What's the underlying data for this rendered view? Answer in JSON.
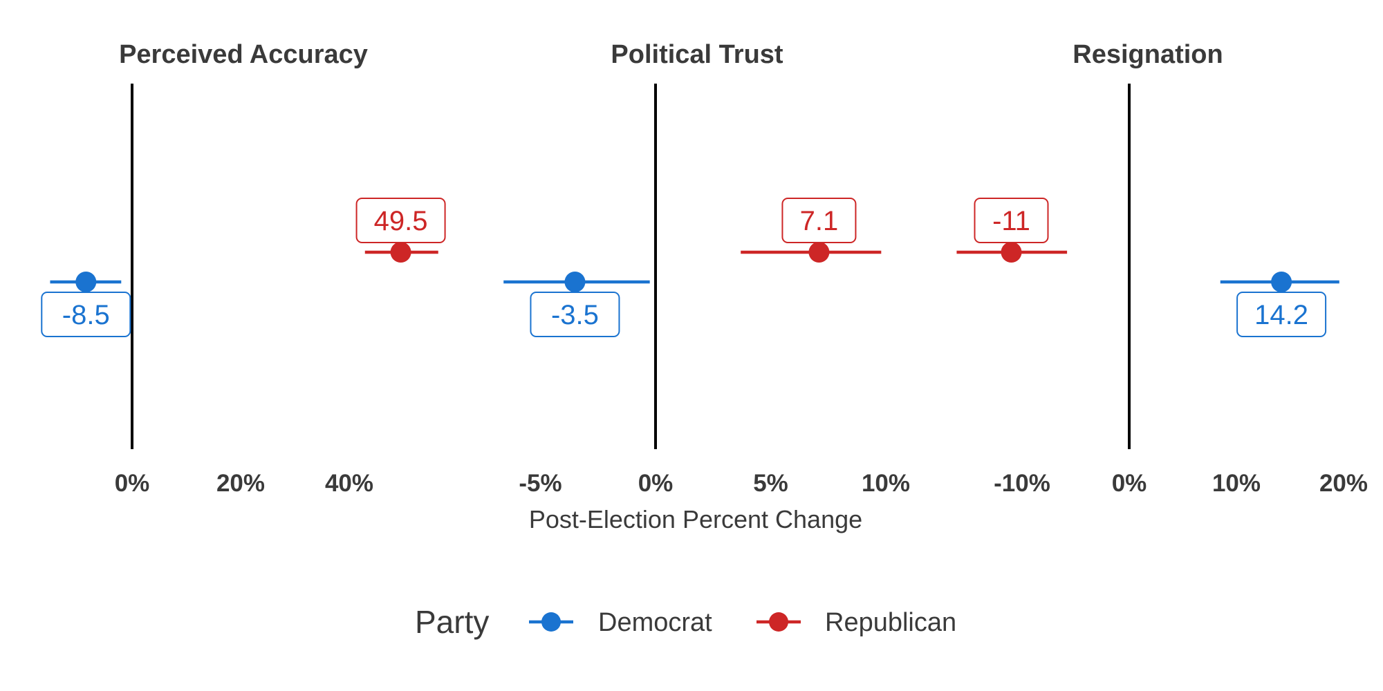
{
  "chart_data": {
    "type": "scatter",
    "subtype": "dot-and-errorbar, faceted",
    "xlabel": "Post-Election Percent Change",
    "legend": {
      "title": "Party",
      "placement": "bottom",
      "entries": [
        {
          "name": "Democrat",
          "color": "#1a73d0"
        },
        {
          "name": "Republican",
          "color": "#cd2626"
        }
      ]
    },
    "panels": [
      {
        "title": "Perceived Accuracy",
        "ticks": [
          0,
          20,
          40
        ],
        "tick_labels": [
          "0%",
          "20%",
          "40%"
        ],
        "points": [
          {
            "party": "Republican",
            "value": 49.5,
            "lower": 42.9,
            "upper": 56.4,
            "label": "49.5"
          },
          {
            "party": "Democrat",
            "value": -8.5,
            "lower": -15.1,
            "upper": -2.0,
            "label": "-8.5"
          }
        ]
      },
      {
        "title": "Political Trust",
        "ticks": [
          -5,
          0,
          5,
          10
        ],
        "tick_labels": [
          "-5%",
          "0%",
          "5%",
          "10%"
        ],
        "points": [
          {
            "party": "Republican",
            "value": 7.1,
            "lower": 3.7,
            "upper": 9.8,
            "label": "7.1"
          },
          {
            "party": "Democrat",
            "value": -3.5,
            "lower": -6.6,
            "upper": -0.25,
            "label": "-3.5"
          }
        ]
      },
      {
        "title": "Resignation",
        "ticks": [
          -10,
          0,
          10,
          20
        ],
        "tick_labels": [
          "-10%",
          "0%",
          "10%",
          "20%"
        ],
        "points": [
          {
            "party": "Republican",
            "value": -11,
            "lower": -16.1,
            "upper": -5.8,
            "label": "-11"
          },
          {
            "party": "Democrat",
            "value": 14.2,
            "lower": 8.5,
            "upper": 19.6,
            "label": "14.2"
          }
        ]
      }
    ]
  }
}
